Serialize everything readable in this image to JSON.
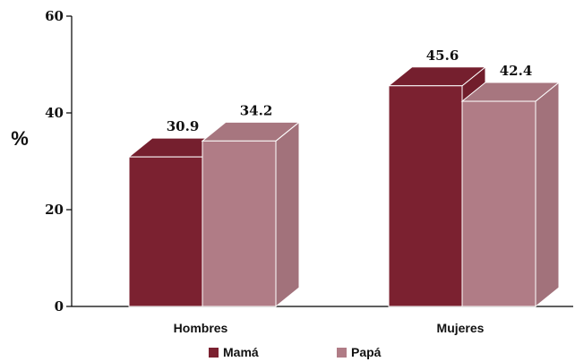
{
  "chart_data": {
    "type": "bar",
    "categories": [
      "Hombres",
      "Mujeres"
    ],
    "series": [
      {
        "name": "Mamá",
        "values": [
          30.9,
          45.6
        ],
        "color": "#7b2130"
      },
      {
        "name": "Papá",
        "values": [
          34.2,
          42.4
        ],
        "color": "#b07c86"
      }
    ],
    "data_labels": [
      "30.9",
      "34.2",
      "45.6",
      "42.4"
    ],
    "ylabel": "%",
    "ylim": [
      0,
      60
    ],
    "yticks": [
      "0",
      "20",
      "40",
      "60"
    ],
    "grid": false,
    "legend_position": "bottom",
    "style": "3d"
  }
}
